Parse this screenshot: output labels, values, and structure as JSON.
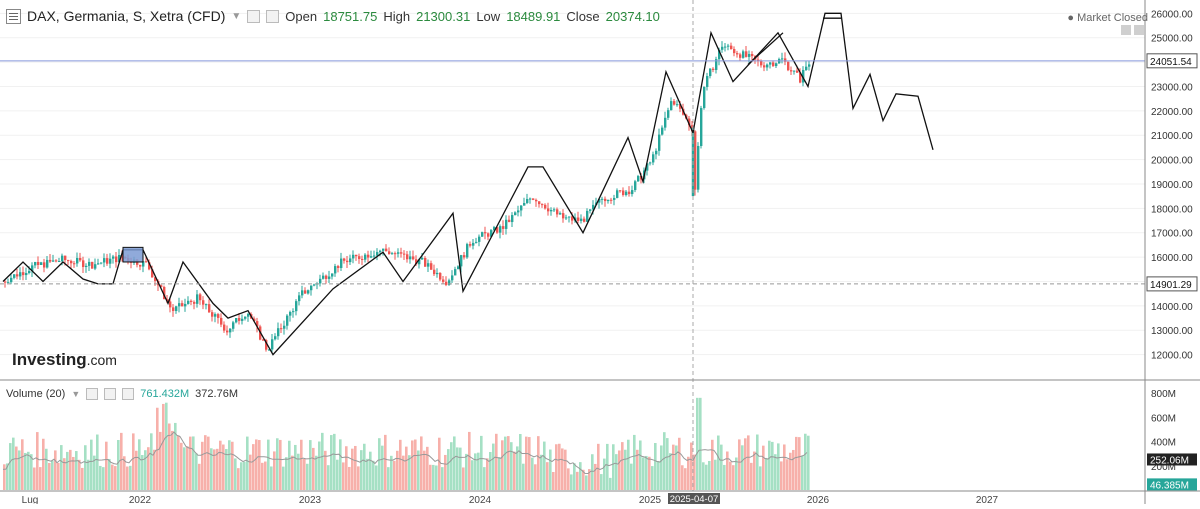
{
  "header": {
    "title": "DAX, Germania, S, Xetra (CFD)",
    "open_label": "Open",
    "open_value": "18751.75",
    "high_label": "High",
    "high_value": "21300.31",
    "low_label": "Low",
    "low_value": "18489.91",
    "close_label": "Close",
    "close_value": "20374.10"
  },
  "market_status": "Market Closed",
  "logo": {
    "main": "Investing",
    "suffix": ".com"
  },
  "volume_header": {
    "label": "Volume (20)",
    "value1": "761.432M",
    "value2": "372.76M"
  },
  "colors": {
    "up": "#26a69a",
    "down": "#ef5350",
    "vol_up": "#a5e0c4",
    "vol_down": "#f7b0aa",
    "hline": "#8899dd",
    "pattern_fill": "#7d9bd4"
  },
  "chart_data": [
    {
      "type": "candlestick",
      "title": "DAX, Germania, S, Xetra (CFD)",
      "ylim": [
        11000,
        26300
      ],
      "yticks": [
        12000,
        13000,
        14000,
        15000,
        16000,
        17000,
        18000,
        19000,
        20000,
        21000,
        22000,
        23000,
        24000,
        25000,
        26000
      ],
      "ytick_labels": [
        "12000.00",
        "13000.00",
        "14000.00",
        "15000.00",
        "16000.00",
        "17000.00",
        "18000.00",
        "19000.00",
        "20000.00",
        "21000.00",
        "22000.00",
        "23000.00",
        "24000.00",
        "25000.00",
        "26000.00"
      ],
      "x_labels": [
        "Lug",
        "2022",
        "2023",
        "2024",
        "2025",
        "2025-04-07",
        "2026",
        "2027"
      ],
      "price_markers": [
        {
          "value": 24051.54,
          "label": "24051.54",
          "style": "solid"
        },
        {
          "value": 14901.29,
          "label": "14901.29",
          "style": "dashed"
        }
      ],
      "crosshair_date": "2025-04-07",
      "anchors": [
        [
          0,
          15000
        ],
        [
          30,
          15600
        ],
        [
          60,
          15900
        ],
        [
          90,
          15700
        ],
        [
          120,
          16000
        ],
        [
          145,
          15700
        ],
        [
          170,
          13800
        ],
        [
          195,
          14300
        ],
        [
          225,
          13000
        ],
        [
          245,
          13800
        ],
        [
          265,
          12200
        ],
        [
          300,
          14500
        ],
        [
          340,
          15800
        ],
        [
          380,
          16300
        ],
        [
          420,
          15800
        ],
        [
          445,
          15000
        ],
        [
          470,
          16700
        ],
        [
          500,
          17200
        ],
        [
          530,
          18500
        ],
        [
          560,
          17600
        ],
        [
          580,
          17500
        ],
        [
          600,
          18400
        ],
        [
          630,
          18800
        ],
        [
          650,
          20000
        ],
        [
          670,
          22500
        ],
        [
          690,
          21300
        ],
        [
          693,
          18800
        ],
        [
          700,
          22800
        ],
        [
          720,
          24700
        ],
        [
          740,
          24300
        ],
        [
          760,
          23900
        ],
        [
          780,
          24100
        ],
        [
          798,
          23300
        ],
        [
          806,
          24000
        ]
      ],
      "drawing_lines": [
        [
          [
            0,
            15000
          ],
          [
            20,
            15800
          ],
          [
            40,
            15000
          ],
          [
            60,
            15800
          ],
          [
            80,
            15100
          ],
          [
            95,
            14900
          ],
          [
            110,
            14900
          ],
          [
            120,
            16300
          ],
          [
            140,
            16300
          ],
          [
            165,
            14100
          ],
          [
            180,
            15800
          ],
          [
            210,
            14100
          ],
          [
            225,
            13500
          ],
          [
            245,
            13800
          ],
          [
            270,
            12000
          ],
          [
            330,
            14700
          ],
          [
            380,
            16200
          ],
          [
            400,
            15000
          ],
          [
            450,
            17800
          ],
          [
            460,
            14600
          ],
          [
            525,
            19700
          ],
          [
            540,
            19700
          ],
          [
            580,
            17000
          ],
          [
            625,
            20900
          ],
          [
            640,
            19100
          ],
          [
            663,
            23600
          ],
          [
            690,
            21100
          ],
          [
            708,
            25200
          ],
          [
            730,
            23200
          ],
          [
            775,
            25200
          ],
          [
            805,
            23000
          ],
          [
            822,
            26000
          ],
          [
            838,
            26000
          ],
          [
            850,
            22100
          ],
          [
            867,
            23500
          ],
          [
            880,
            21600
          ],
          [
            893,
            22700
          ],
          [
            915,
            22600
          ],
          [
            930,
            20400
          ]
        ],
        [
          [
            820,
            25800
          ],
          [
            838,
            25800
          ]
        ],
        [
          [
            745,
            23900
          ],
          [
            780,
            25200
          ]
        ]
      ],
      "pattern_box": {
        "x": [
          120,
          140
        ],
        "y": [
          15800,
          16400
        ]
      }
    },
    {
      "type": "bar",
      "title": "Volume (20)",
      "ylim": [
        0,
        900
      ],
      "yticks": [
        200,
        400,
        600,
        800
      ],
      "ytick_labels": [
        "200M",
        "400M",
        "600M",
        "800M"
      ],
      "markers": [
        {
          "value": 252.06,
          "label": "252.06M",
          "style": "dark"
        },
        {
          "value": 46.385,
          "label": "46.385M",
          "style": "green"
        }
      ]
    }
  ]
}
